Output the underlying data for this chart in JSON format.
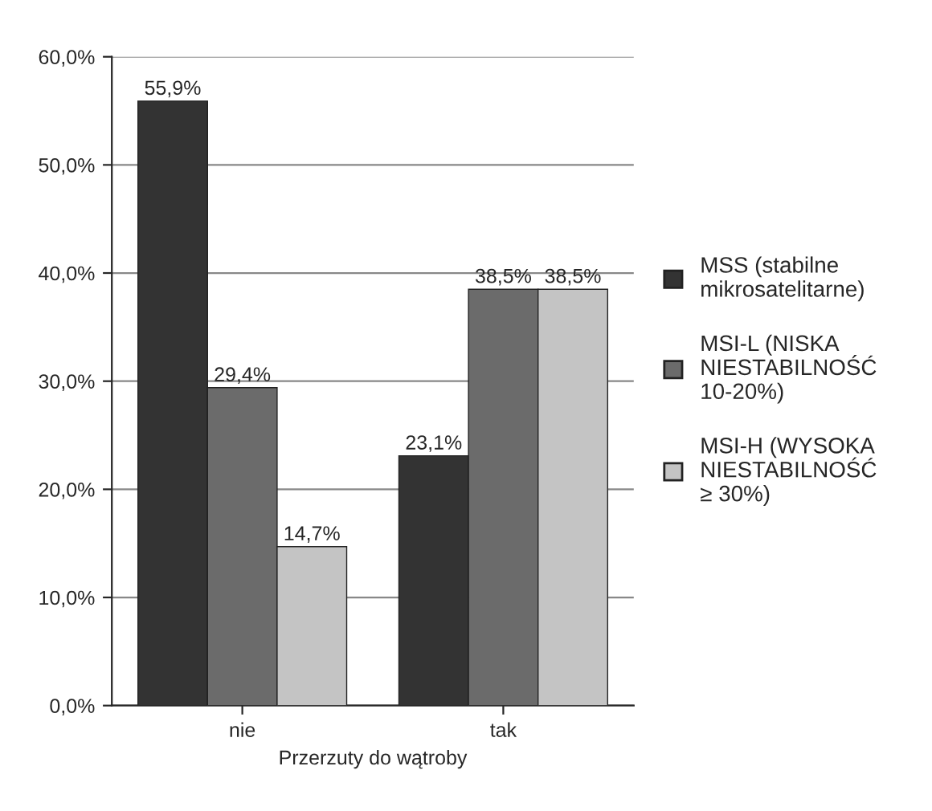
{
  "chart_data": {
    "type": "bar",
    "xlabel": "Przerzuty do wątroby",
    "categories": [
      "nie",
      "tak"
    ],
    "series": [
      {
        "name": "MSS (stabilne\nmikrosatelitarne)",
        "color": "#333333",
        "values": [
          55.9,
          23.1
        ],
        "value_labels": [
          "55,9%",
          "23,1%"
        ]
      },
      {
        "name": "MSI-L (NISKA\nNIESTABILNOŚĆ\n10-20%)",
        "color": "#6b6b6b",
        "values": [
          29.4,
          38.5
        ],
        "value_labels": [
          "29,4%",
          "38,5%"
        ]
      },
      {
        "name": "MSI-H (WYSOKA\nNIESTABILNOŚĆ\n≥ 30%)",
        "color": "#c4c4c4",
        "values": [
          14.7,
          38.5
        ],
        "value_labels": [
          "14,7%",
          "38,5%"
        ]
      }
    ],
    "ylim": [
      0,
      60
    ],
    "yticks": [
      {
        "value": 0,
        "label": "0,0%"
      },
      {
        "value": 10,
        "label": "10,0%"
      },
      {
        "value": 20,
        "label": "20,0%"
      },
      {
        "value": 30,
        "label": "30,0%"
      },
      {
        "value": 40,
        "label": "40,0%"
      },
      {
        "value": 50,
        "label": "50,0%"
      },
      {
        "value": 60,
        "label": "60,0%"
      }
    ],
    "grid": "y",
    "legend": "right"
  }
}
